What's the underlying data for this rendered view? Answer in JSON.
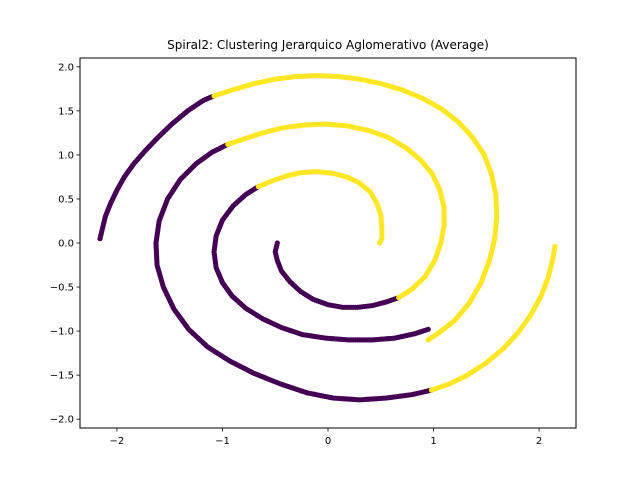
{
  "chart_data": {
    "type": "scatter",
    "title": "Spiral2: Clustering Jerarquico Aglomerativo (Average)",
    "xlabel": "",
    "ylabel": "",
    "xlim": [
      -2.35,
      2.35
    ],
    "ylim": [
      -2.1,
      2.1
    ],
    "x_ticks": [
      -2,
      -1,
      0,
      1,
      2
    ],
    "y_ticks": [
      -2.0,
      -1.5,
      -1.0,
      -0.5,
      0.0,
      0.5,
      1.0,
      1.5,
      2.0
    ],
    "x_tick_labels": [
      "−2",
      "−1",
      "0",
      "1",
      "2"
    ],
    "y_tick_labels": [
      "−2.0",
      "−1.5",
      "−1.0",
      "−0.5",
      "0.0",
      "0.5",
      "1.0",
      "1.5",
      "2.0"
    ],
    "grid": false,
    "colors": {
      "cluster_0": "#440154",
      "cluster_1": "#fde725"
    },
    "series": [
      {
        "cluster": 0,
        "points": [
          [
            -2.16,
            0.05
          ],
          [
            -2.14,
            0.15
          ],
          [
            -2.11,
            0.3
          ],
          [
            -2.06,
            0.45
          ],
          [
            -2.0,
            0.6
          ],
          [
            -1.93,
            0.75
          ],
          [
            -1.84,
            0.9
          ],
          [
            -1.73,
            1.05
          ],
          [
            -1.61,
            1.2
          ],
          [
            -1.48,
            1.35
          ],
          [
            -1.33,
            1.5
          ],
          [
            -1.18,
            1.62
          ],
          [
            -1.08,
            1.67
          ],
          [
            -0.95,
            1.12
          ],
          [
            -1.1,
            1.03
          ],
          [
            -1.25,
            0.9
          ],
          [
            -1.4,
            0.72
          ],
          [
            -1.52,
            0.5
          ],
          [
            -1.6,
            0.25
          ],
          [
            -1.63,
            0.0
          ],
          [
            -1.62,
            -0.25
          ],
          [
            -1.56,
            -0.5
          ],
          [
            -1.46,
            -0.75
          ],
          [
            -1.32,
            -0.98
          ],
          [
            -1.14,
            -1.18
          ],
          [
            -0.93,
            -1.34
          ],
          [
            -0.7,
            -1.48
          ],
          [
            -0.45,
            -1.6
          ],
          [
            -0.2,
            -1.7
          ],
          [
            0.05,
            -1.76
          ],
          [
            0.3,
            -1.78
          ],
          [
            0.55,
            -1.76
          ],
          [
            0.8,
            -1.72
          ],
          [
            0.98,
            -1.67
          ],
          [
            -0.66,
            0.64
          ],
          [
            -0.78,
            0.55
          ],
          [
            -0.9,
            0.42
          ],
          [
            -1.0,
            0.26
          ],
          [
            -1.06,
            0.08
          ],
          [
            -1.08,
            -0.1
          ],
          [
            -1.06,
            -0.28
          ],
          [
            -1.0,
            -0.45
          ],
          [
            -0.91,
            -0.6
          ],
          [
            -0.78,
            -0.74
          ],
          [
            -0.62,
            -0.86
          ],
          [
            -0.44,
            -0.96
          ],
          [
            -0.24,
            -1.04
          ],
          [
            -0.02,
            -1.08
          ],
          [
            0.2,
            -1.1
          ],
          [
            0.42,
            -1.1
          ],
          [
            0.63,
            -1.08
          ],
          [
            0.82,
            -1.03
          ],
          [
            0.95,
            -0.98
          ],
          [
            -0.48,
            0.0
          ],
          [
            -0.5,
            -0.1
          ],
          [
            -0.48,
            -0.2
          ],
          [
            -0.44,
            -0.32
          ],
          [
            -0.36,
            -0.44
          ],
          [
            -0.26,
            -0.55
          ],
          [
            -0.14,
            -0.64
          ],
          [
            0.0,
            -0.7
          ],
          [
            0.14,
            -0.73
          ],
          [
            0.28,
            -0.73
          ],
          [
            0.42,
            -0.71
          ],
          [
            0.55,
            -0.67
          ],
          [
            0.67,
            -0.62
          ]
        ]
      },
      {
        "cluster": 1,
        "points": [
          [
            -1.08,
            1.67
          ],
          [
            -0.9,
            1.74
          ],
          [
            -0.7,
            1.81
          ],
          [
            -0.5,
            1.86
          ],
          [
            -0.3,
            1.89
          ],
          [
            -0.1,
            1.9
          ],
          [
            0.1,
            1.89
          ],
          [
            0.3,
            1.86
          ],
          [
            0.5,
            1.81
          ],
          [
            0.7,
            1.74
          ],
          [
            0.9,
            1.64
          ],
          [
            1.08,
            1.52
          ],
          [
            1.24,
            1.37
          ],
          [
            1.37,
            1.2
          ],
          [
            1.48,
            1.0
          ],
          [
            1.55,
            0.78
          ],
          [
            1.59,
            0.55
          ],
          [
            1.6,
            0.3
          ],
          [
            1.58,
            0.05
          ],
          [
            1.53,
            -0.2
          ],
          [
            1.45,
            -0.45
          ],
          [
            1.34,
            -0.68
          ],
          [
            1.2,
            -0.88
          ],
          [
            1.05,
            -1.02
          ],
          [
            0.95,
            -1.1
          ],
          [
            -0.95,
            1.12
          ],
          [
            -0.8,
            1.18
          ],
          [
            -0.62,
            1.25
          ],
          [
            -0.42,
            1.31
          ],
          [
            -0.22,
            1.34
          ],
          [
            -0.02,
            1.35
          ],
          [
            0.18,
            1.33
          ],
          [
            0.38,
            1.28
          ],
          [
            0.57,
            1.2
          ],
          [
            0.74,
            1.08
          ],
          [
            0.88,
            0.94
          ],
          [
            0.99,
            0.78
          ],
          [
            1.06,
            0.6
          ],
          [
            1.1,
            0.4
          ],
          [
            1.1,
            0.2
          ],
          [
            1.07,
            0.0
          ],
          [
            1.01,
            -0.2
          ],
          [
            0.92,
            -0.38
          ],
          [
            0.8,
            -0.52
          ],
          [
            0.67,
            -0.62
          ],
          [
            -0.66,
            0.64
          ],
          [
            -0.54,
            0.7
          ],
          [
            -0.4,
            0.76
          ],
          [
            -0.25,
            0.8
          ],
          [
            -0.1,
            0.81
          ],
          [
            0.05,
            0.79
          ],
          [
            0.18,
            0.75
          ],
          [
            0.3,
            0.68
          ],
          [
            0.4,
            0.58
          ],
          [
            0.46,
            0.46
          ],
          [
            0.5,
            0.32
          ],
          [
            0.51,
            0.18
          ],
          [
            0.51,
            0.05
          ],
          [
            0.49,
            0.0
          ],
          [
            0.98,
            -1.67
          ],
          [
            1.15,
            -1.6
          ],
          [
            1.32,
            -1.5
          ],
          [
            1.5,
            -1.36
          ],
          [
            1.66,
            -1.2
          ],
          [
            1.8,
            -1.02
          ],
          [
            1.92,
            -0.82
          ],
          [
            2.02,
            -0.6
          ],
          [
            2.09,
            -0.38
          ],
          [
            2.13,
            -0.18
          ],
          [
            2.15,
            -0.04
          ]
        ]
      }
    ]
  }
}
